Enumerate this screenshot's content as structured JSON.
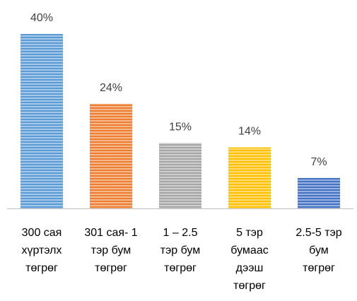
{
  "chart_data": {
    "type": "bar",
    "categories": [
      [
        "300 сая",
        "хүртэлх",
        "төгрөг"
      ],
      [
        "301 сая- 1",
        "тэр бум",
        "төгрөг"
      ],
      [
        "1 – 2.5",
        "тэр бум",
        "төгрөг"
      ],
      [
        "5 тэр",
        "бумаас",
        "дээш",
        "төгрөг"
      ],
      [
        "2.5-5 тэр",
        "бум",
        "төгрөг"
      ]
    ],
    "values": [
      40,
      24,
      15,
      14,
      7
    ],
    "data_labels": [
      "40%",
      "24%",
      "15%",
      "14%",
      "7%"
    ],
    "colors": [
      "#5b9bd5",
      "#ed7d31",
      "#a5a5a5",
      "#ffc000",
      "#4472c4"
    ],
    "ylim": [
      0,
      40
    ],
    "grid": false,
    "legend": "none"
  }
}
